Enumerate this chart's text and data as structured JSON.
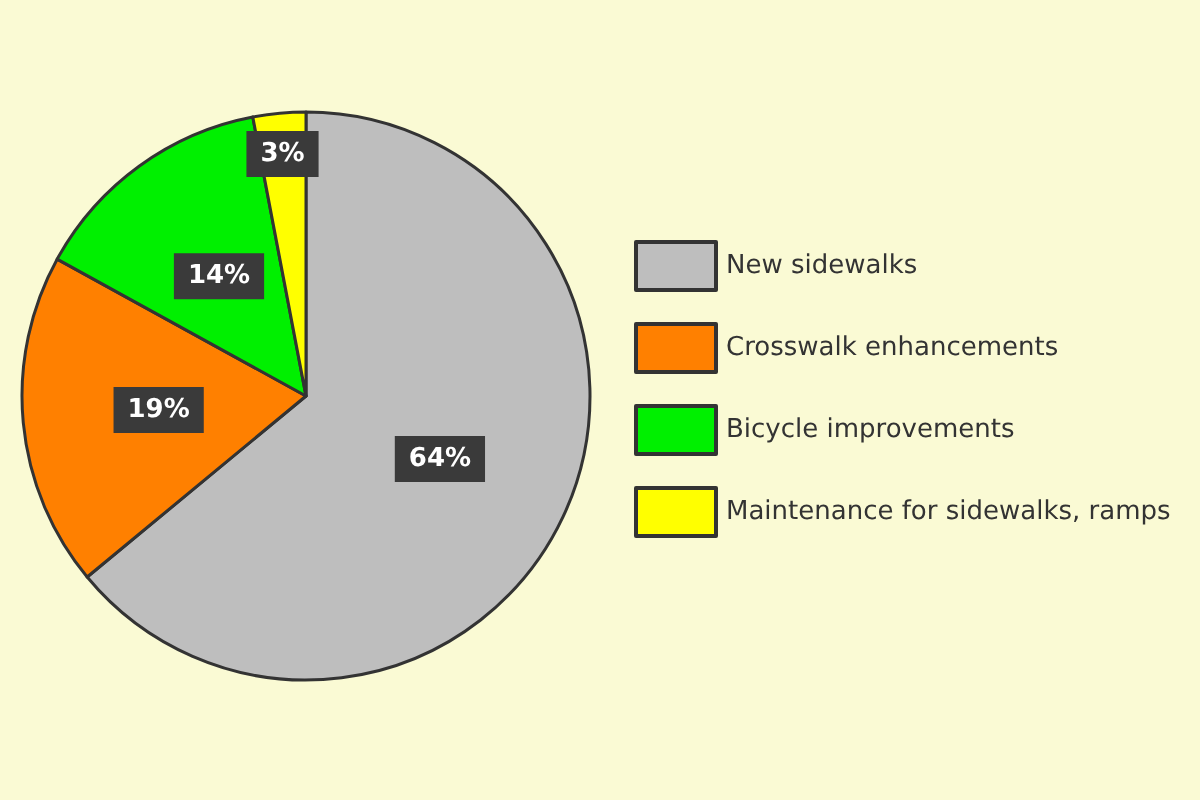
{
  "chart_data": {
    "type": "pie",
    "categories": [
      "New sidewalks",
      "Crosswalk enhancements",
      "Bicycle improvements",
      "Maintenance for sidewalks, ramps"
    ],
    "values": [
      64,
      19,
      14,
      3
    ],
    "colors": [
      "#bebebe",
      "#ff8000",
      "#00f000",
      "#ffff00"
    ],
    "value_labels": [
      "64%",
      "19%",
      "14%",
      "3%"
    ],
    "legend": "right"
  }
}
